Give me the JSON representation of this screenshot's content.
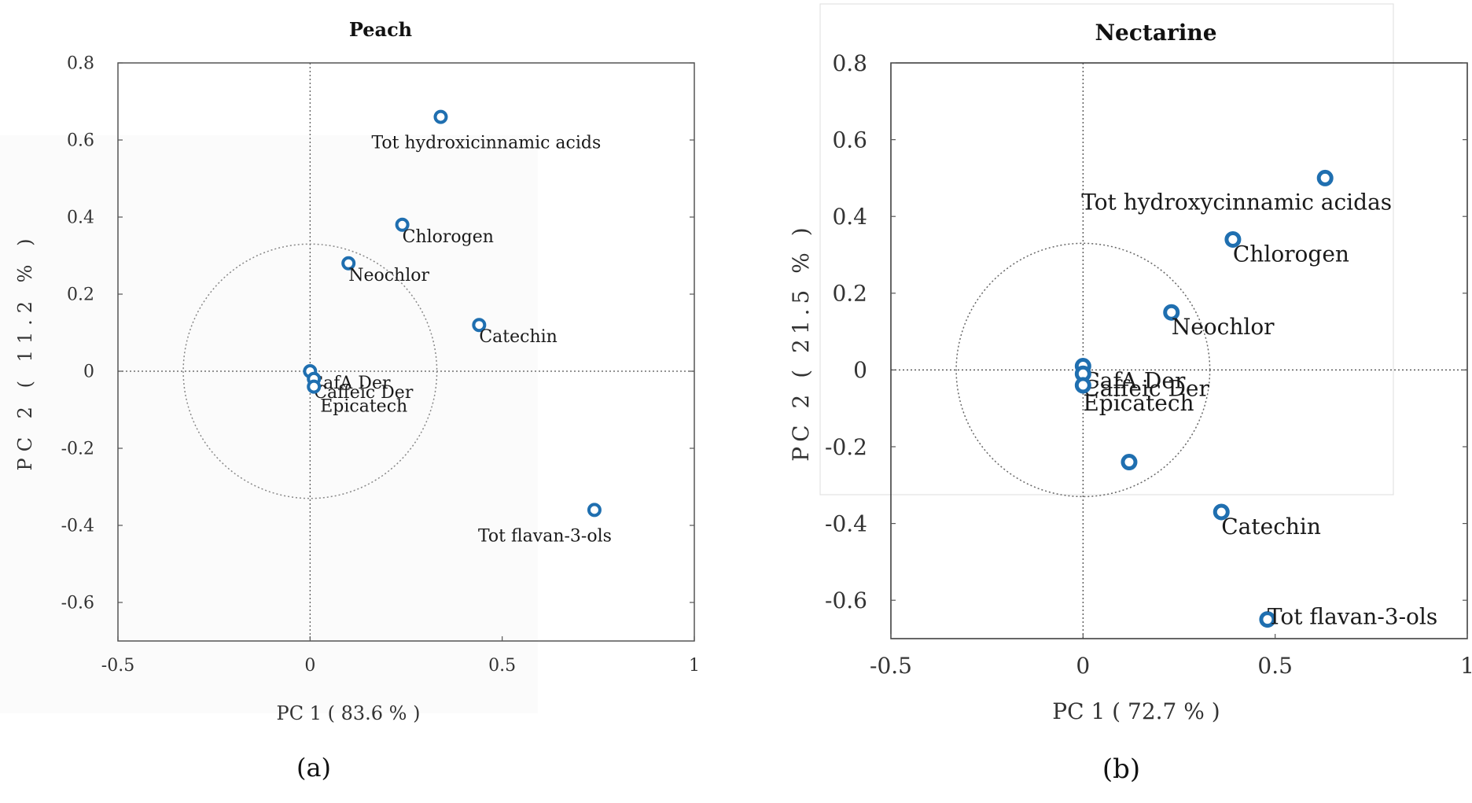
{
  "chart_data": [
    {
      "type": "scatter",
      "title": "Peach",
      "xlabel": "PC 1 ( 83.6 % )",
      "ylabel": "PC 2 ( 11.2 % )",
      "panel_label": "(a)",
      "xlim": [
        -0.5,
        1
      ],
      "ylim": [
        -0.7,
        0.8
      ],
      "xticks": [
        -0.5,
        0,
        0.5,
        1
      ],
      "yticks": [
        0.8,
        0.6,
        0.4,
        0.2,
        0,
        -0.2,
        -0.4,
        -0.6
      ],
      "tick_labels_x": [
        "-0.5",
        "0",
        "0.5",
        "1"
      ],
      "tick_labels_y": [
        "0.8",
        "0.6",
        "0.4",
        "0.2",
        "0",
        "-0.2",
        "-0.4",
        "-0.6"
      ],
      "circle_radius": 0.33,
      "grid": false,
      "marker_color": "#1f6fb0",
      "points": [
        {
          "label": "Tot hydroxicinnamic acids",
          "x": 0.34,
          "y": 0.66
        },
        {
          "label": "Chlorogen",
          "x": 0.24,
          "y": 0.38
        },
        {
          "label": "Neochlor",
          "x": 0.1,
          "y": 0.28
        },
        {
          "label": "Catechin",
          "x": 0.44,
          "y": 0.12
        },
        {
          "label": "CafA Der",
          "x": 0.0,
          "y": 0.0
        },
        {
          "label": "Caffeic Der",
          "x": 0.01,
          "y": -0.02
        },
        {
          "label": "Epicatech",
          "x": 0.01,
          "y": -0.04
        },
        {
          "label": "Tot flavan-3-ols",
          "x": 0.74,
          "y": -0.36
        }
      ]
    },
    {
      "type": "scatter",
      "title": "Nectarine",
      "xlabel": "PC 1 ( 72.7 % )",
      "ylabel": "PC 2 ( 21.5 % )",
      "panel_label": "(b)",
      "xlim": [
        -0.5,
        1
      ],
      "ylim": [
        -0.7,
        0.8
      ],
      "xticks": [
        -0.5,
        0,
        0.5,
        1
      ],
      "yticks": [
        0.8,
        0.6,
        0.4,
        0.2,
        0,
        -0.2,
        -0.4,
        -0.6
      ],
      "tick_labels_x": [
        "-0.5",
        "0",
        "0.5",
        "1"
      ],
      "tick_labels_y": [
        "0.8",
        "0.6",
        "0.4",
        "0.2",
        "0",
        "-0.2",
        "-0.4",
        "-0.6"
      ],
      "circle_radius": 0.33,
      "grid": false,
      "marker_color": "#1f6fb0",
      "points": [
        {
          "label": "Tot hydroxycinnamic acidas",
          "x": 0.63,
          "y": 0.5
        },
        {
          "label": "Chlorogen",
          "x": 0.39,
          "y": 0.34
        },
        {
          "label": "Neochlor",
          "x": 0.23,
          "y": 0.15
        },
        {
          "label": "CafA Der",
          "x": 0.0,
          "y": 0.01
        },
        {
          "label": "Caffeic Der",
          "x": 0.0,
          "y": -0.01
        },
        {
          "label": "Epicatech",
          "x": 0.0,
          "y": -0.04
        },
        {
          "label": "",
          "x": 0.12,
          "y": -0.24
        },
        {
          "label": "Catechin",
          "x": 0.36,
          "y": -0.37
        },
        {
          "label": "Tot flavan-3-ols",
          "x": 0.48,
          "y": -0.65
        }
      ]
    }
  ]
}
